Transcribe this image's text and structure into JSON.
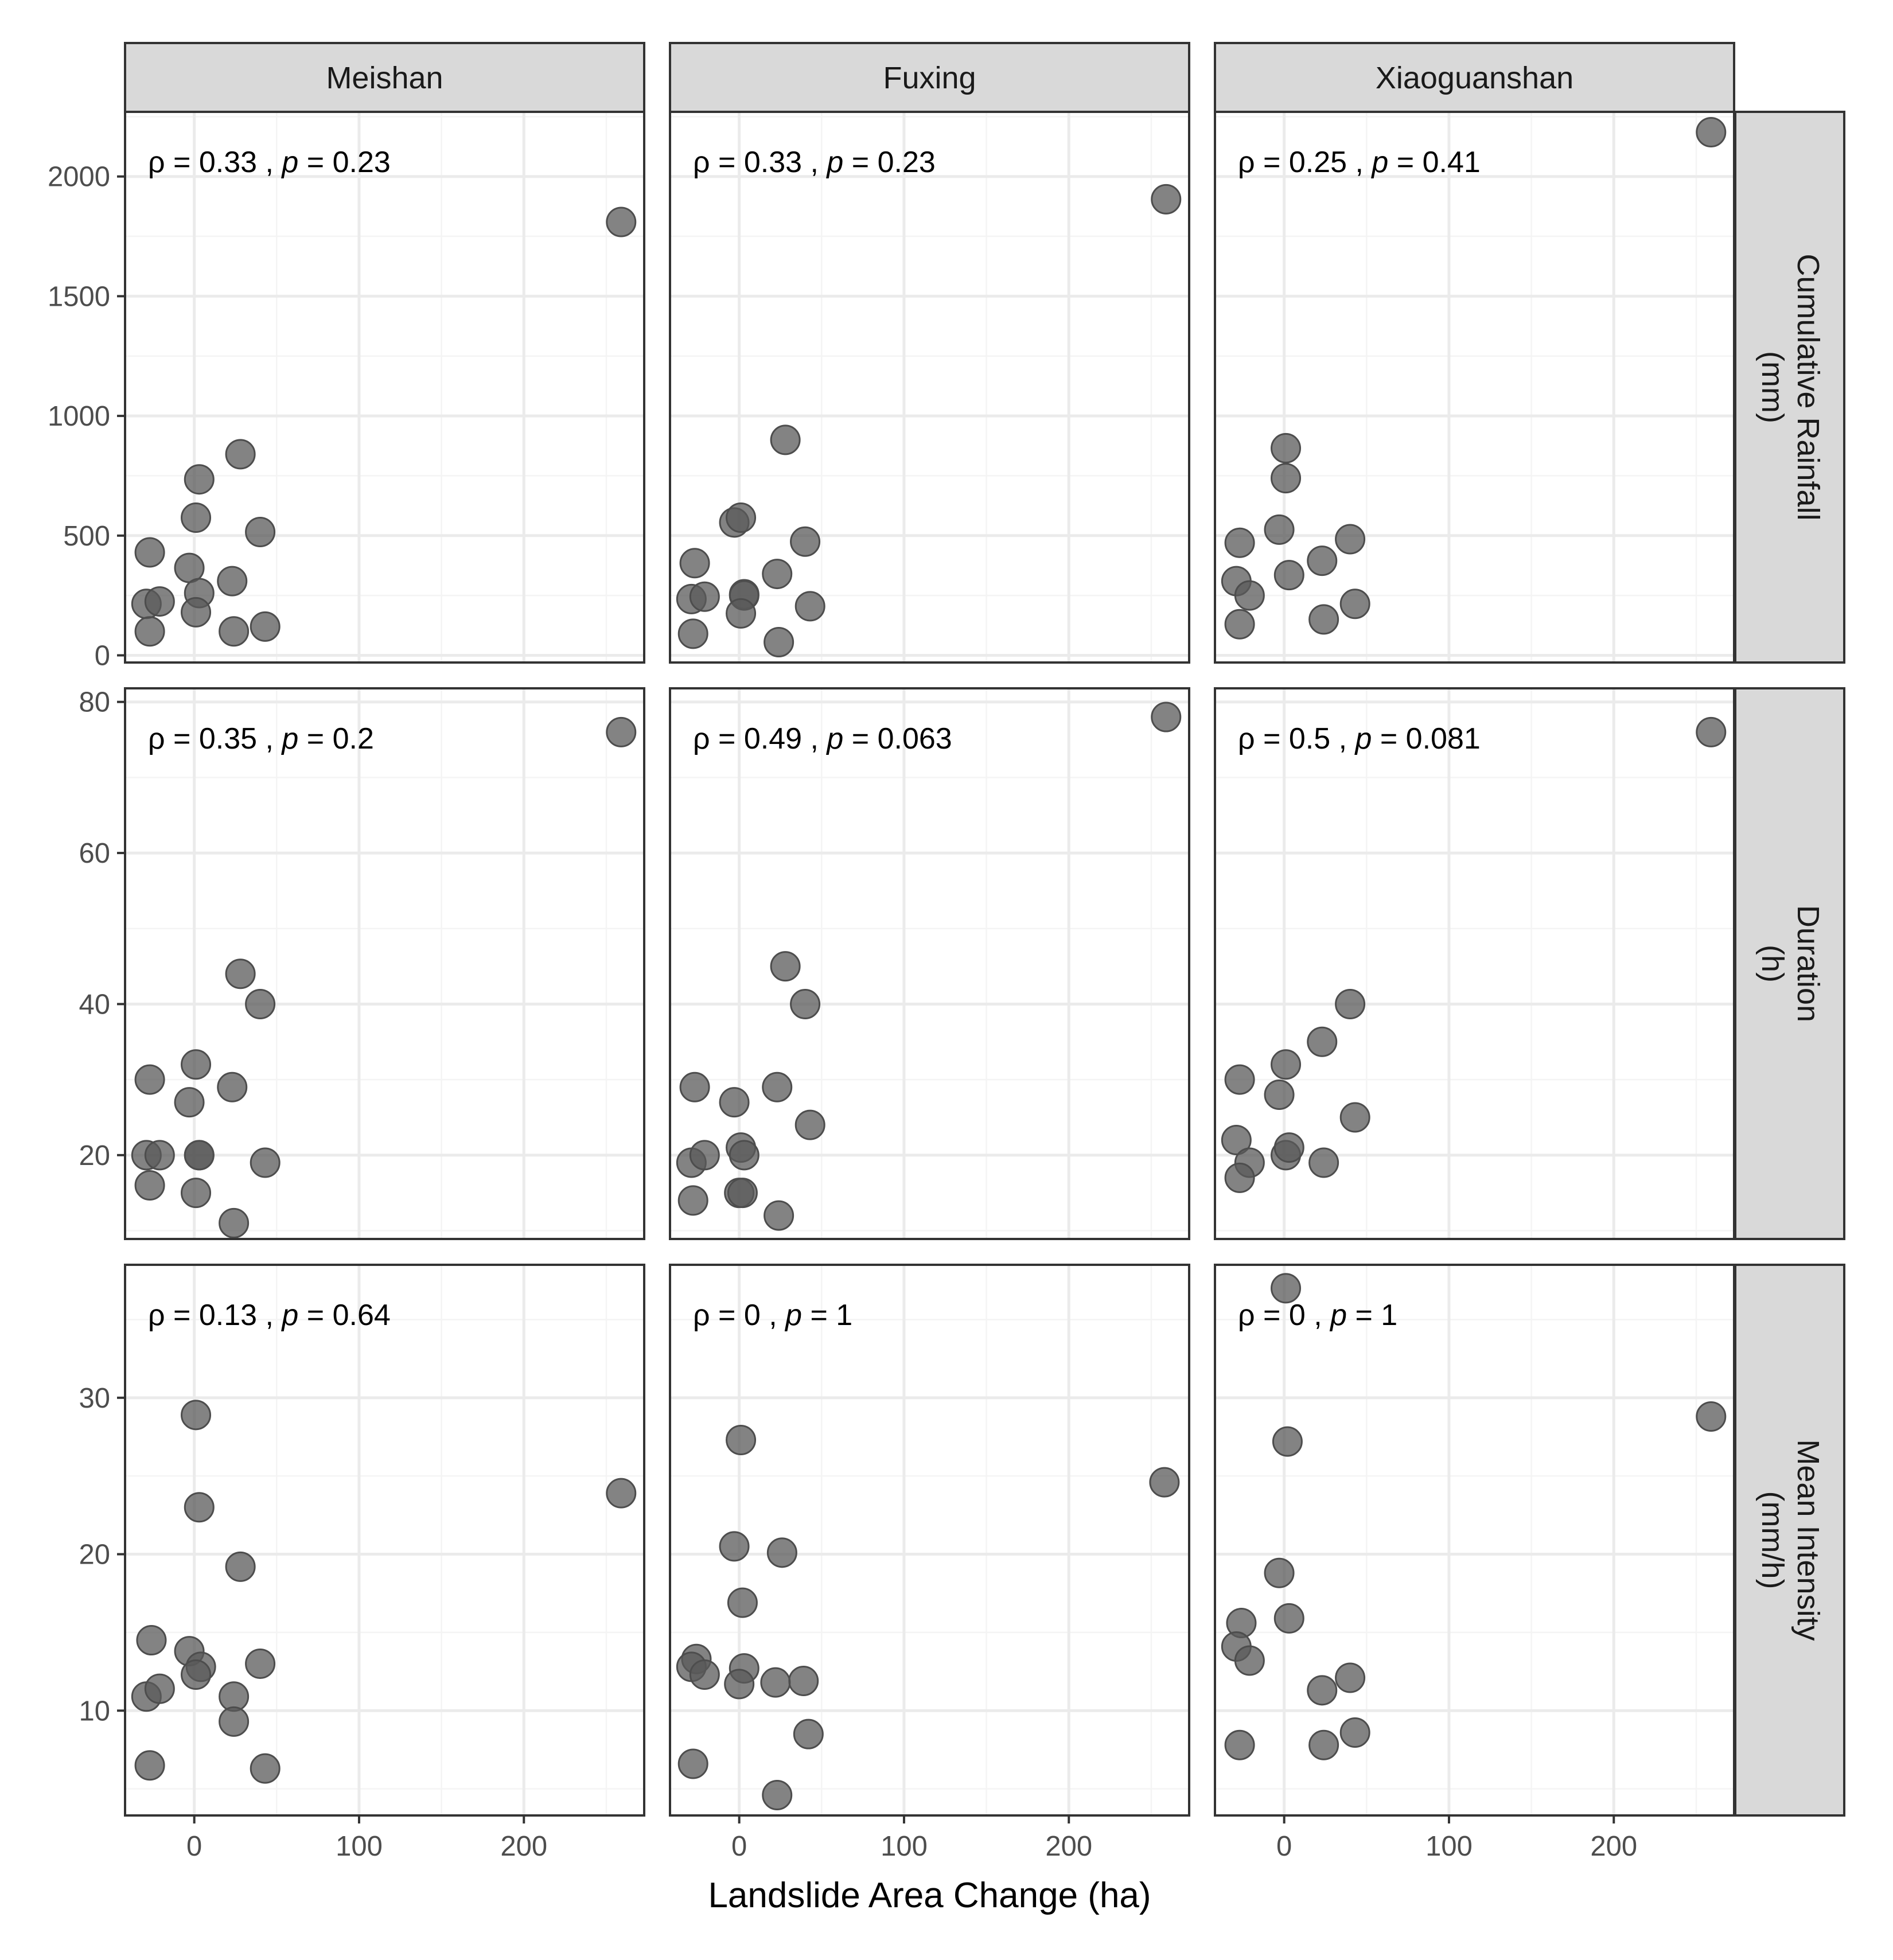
{
  "chart_data": {
    "type": "scatter",
    "xlabel": "Landslide Area Change (ha)",
    "xlim": [
      -42,
      273
    ],
    "x_ticks": [
      0,
      100,
      200
    ],
    "x_tick_labels": [
      "0",
      "100",
      "200"
    ],
    "columns": [
      "Meishan",
      "Fuxing",
      "Xiaoguanshan"
    ],
    "rows": [
      {
        "name": "Cumulative Rainfall\n(mm)",
        "label_lines": [
          "Cumulative Rainfall",
          "(mm)"
        ],
        "ylim": [
          -30,
          2270
        ],
        "y_ticks": [
          0,
          500,
          1000,
          1500,
          2000
        ],
        "y_tick_labels": [
          "0",
          "500",
          "1000",
          "1500",
          "2000"
        ]
      },
      {
        "name": "Duration\n(h)",
        "label_lines": [
          "Duration",
          "(h)"
        ],
        "ylim": [
          8.9,
          81.8
        ],
        "y_ticks": [
          20,
          40,
          60,
          80
        ],
        "y_tick_labels": [
          "20",
          "40",
          "60",
          "80"
        ]
      },
      {
        "name": "Mean Intensity\n(mm/h)",
        "label_lines": [
          "Mean Intensity",
          "(mm/h)"
        ],
        "ylim": [
          3.3,
          38.5
        ],
        "y_ticks": [
          10,
          20,
          30
        ],
        "y_tick_labels": [
          "10",
          "20",
          "30"
        ]
      }
    ],
    "panels": [
      {
        "row": 0,
        "col": 0,
        "annotation": {
          "rho": "0.33",
          "p": "0.23"
        },
        "x": [
          -27,
          -29,
          -21,
          -3,
          1,
          3,
          3,
          28,
          40,
          23,
          43,
          24,
          259,
          -27,
          1
        ],
        "y": [
          430,
          215,
          225,
          365,
          575,
          735,
          260,
          840,
          515,
          310,
          120,
          100,
          1810,
          100,
          180
        ]
      },
      {
        "row": 0,
        "col": 1,
        "annotation": {
          "rho": "0.33",
          "p": "0.23"
        },
        "x": [
          -27,
          -29,
          -21,
          -3,
          1,
          3,
          3,
          28,
          40,
          23,
          43,
          24,
          259,
          -28,
          1
        ],
        "y": [
          385,
          235,
          245,
          555,
          575,
          255,
          250,
          900,
          475,
          340,
          205,
          55,
          1905,
          90,
          175
        ]
      },
      {
        "row": 0,
        "col": 2,
        "annotation": {
          "rho": "0.25",
          "p": "0.41"
        },
        "x": [
          -27,
          -29,
          -21,
          -3,
          1,
          1,
          3,
          23,
          40,
          24,
          43,
          259,
          -27
        ],
        "y": [
          470,
          310,
          250,
          525,
          865,
          740,
          335,
          395,
          485,
          150,
          215,
          2185,
          130
        ]
      },
      {
        "row": 1,
        "col": 0,
        "annotation": {
          "rho": "0.35",
          "p": "0.2"
        },
        "x": [
          -27,
          -29,
          -21,
          -3,
          1,
          3,
          3,
          28,
          40,
          23,
          43,
          24,
          259,
          -27,
          1
        ],
        "y": [
          30,
          20,
          20,
          27,
          32,
          20,
          20,
          44,
          40,
          29,
          19,
          11,
          76,
          16,
          15
        ]
      },
      {
        "row": 1,
        "col": 1,
        "annotation": {
          "rho": "0.49",
          "p": "0.063"
        },
        "x": [
          -27,
          -29,
          -21,
          -3,
          1,
          3,
          0,
          28,
          40,
          23,
          43,
          24,
          259,
          -28,
          2
        ],
        "y": [
          29,
          19,
          20,
          27,
          21,
          20,
          15,
          45,
          40,
          29,
          24,
          12,
          78,
          14,
          15
        ]
      },
      {
        "row": 1,
        "col": 2,
        "annotation": {
          "rho": "0.5",
          "p": "0.081"
        },
        "x": [
          -27,
          -29,
          -21,
          -3,
          1,
          1,
          3,
          23,
          40,
          24,
          43,
          259,
          -27
        ],
        "y": [
          30,
          22,
          19,
          28,
          32,
          20,
          21,
          35,
          40,
          19,
          25,
          76,
          17
        ]
      },
      {
        "row": 2,
        "col": 0,
        "annotation": {
          "rho": "0.13",
          "p": "0.64"
        },
        "x": [
          -26,
          -29,
          -21,
          -3,
          1,
          3,
          4,
          28,
          40,
          24,
          43,
          24,
          259,
          -27,
          1
        ],
        "y": [
          14.5,
          10.9,
          11.4,
          13.8,
          28.9,
          23.0,
          12.8,
          19.2,
          13.0,
          10.9,
          6.3,
          9.3,
          23.9,
          6.5,
          12.3
        ]
      },
      {
        "row": 2,
        "col": 1,
        "annotation": {
          "rho": "0",
          "p": "1"
        },
        "x": [
          -26,
          -29,
          -21,
          -3,
          1,
          2,
          3,
          26,
          39,
          22,
          42,
          23,
          258,
          -28,
          0
        ],
        "y": [
          13.3,
          12.8,
          12.3,
          20.5,
          27.3,
          16.9,
          12.7,
          20.1,
          11.9,
          11.8,
          8.5,
          4.6,
          24.6,
          6.6,
          11.7
        ]
      },
      {
        "row": 2,
        "col": 2,
        "annotation": {
          "rho": "0",
          "p": "1"
        },
        "x": [
          -26,
          -29,
          -21,
          -3,
          1,
          2,
          3,
          23,
          40,
          24,
          43,
          259,
          -27
        ],
        "y": [
          15.6,
          14.1,
          13.2,
          18.8,
          37.0,
          27.2,
          15.9,
          11.3,
          12.1,
          7.8,
          8.6,
          28.8,
          7.8
        ]
      }
    ]
  }
}
